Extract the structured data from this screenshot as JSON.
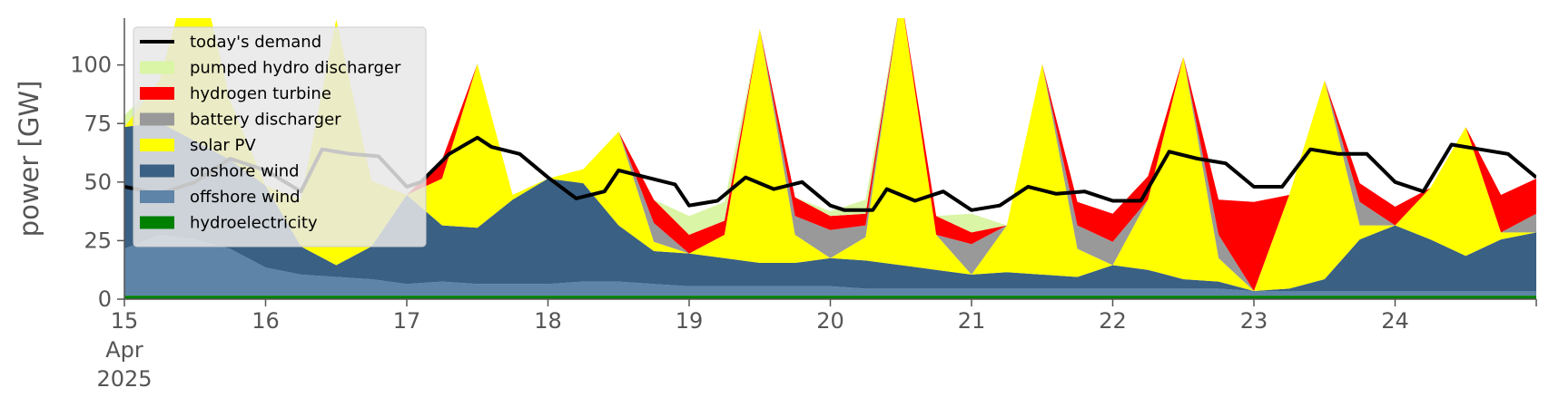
{
  "chart_data": {
    "type": "area",
    "ylabel": "power [GW]",
    "xlabel": "",
    "ylim": [
      0,
      120
    ],
    "xlim": [
      15,
      25
    ],
    "y_ticks": [
      0,
      25,
      50,
      75,
      100
    ],
    "x_ticks": [
      {
        "x": 15,
        "lines": [
          "15",
          "Apr",
          "2025"
        ]
      },
      {
        "x": 16,
        "lines": [
          "16"
        ]
      },
      {
        "x": 17,
        "lines": [
          "17"
        ]
      },
      {
        "x": 18,
        "lines": [
          "18"
        ]
      },
      {
        "x": 19,
        "lines": [
          "19"
        ]
      },
      {
        "x": 20,
        "lines": [
          "20"
        ]
      },
      {
        "x": 21,
        "lines": [
          "21"
        ]
      },
      {
        "x": 22,
        "lines": [
          "22"
        ]
      },
      {
        "x": 23,
        "lines": [
          "23"
        ]
      },
      {
        "x": 24,
        "lines": [
          "24"
        ]
      }
    ],
    "grid": false,
    "legend_position": "upper-left",
    "x": [
      15.0,
      15.25,
      15.5,
      15.75,
      16.0,
      16.25,
      16.5,
      16.75,
      17.0,
      17.25,
      17.5,
      17.75,
      18.0,
      18.25,
      18.5,
      18.75,
      19.0,
      19.25,
      19.5,
      19.75,
      20.0,
      20.25,
      20.5,
      20.75,
      21.0,
      21.25,
      21.5,
      21.75,
      22.0,
      22.25,
      22.5,
      22.75,
      23.0,
      23.25,
      23.5,
      23.75,
      24.0,
      24.25,
      24.5,
      24.75,
      25.0
    ],
    "stack_order": [
      "hydroelectricity",
      "offshore wind",
      "onshore wind",
      "solar PV",
      "battery discharger",
      "hydrogen turbine",
      "pumped hydro discharger"
    ],
    "series": [
      {
        "name": "hydroelectricity",
        "color": "#008000",
        "values": [
          1.5,
          1.5,
          1.5,
          1.5,
          1.5,
          1.5,
          1.5,
          1.5,
          1.5,
          1.5,
          1.5,
          1.5,
          1.5,
          1.5,
          1.5,
          1.5,
          1.5,
          1.5,
          1.5,
          1.5,
          1.5,
          1.5,
          1.5,
          1.5,
          1.5,
          1.5,
          1.5,
          1.5,
          1.5,
          1.5,
          1.5,
          1.5,
          1.5,
          1.5,
          1.5,
          1.5,
          1.5,
          1.5,
          1.5,
          1.5,
          1.5
        ]
      },
      {
        "name": "offshore wind",
        "color": "#5e84a8",
        "values": [
          20,
          26,
          24,
          20,
          12,
          9,
          8,
          7,
          5,
          6,
          5,
          5,
          5,
          6,
          6,
          5,
          4,
          4,
          4,
          4,
          4,
          3,
          3,
          3,
          3,
          3,
          3,
          3,
          3,
          3,
          3,
          3,
          2,
          2,
          2,
          2,
          2,
          2,
          2,
          2,
          2
        ]
      },
      {
        "name": "onshore wind",
        "color": "#3a6084",
        "values": [
          52,
          48,
          42,
          38,
          35,
          12,
          5,
          14,
          38,
          24,
          24,
          36,
          45,
          42,
          24,
          14,
          14,
          12,
          10,
          10,
          12,
          12,
          10,
          8,
          6,
          7,
          6,
          5,
          10,
          8,
          4,
          3,
          0,
          1,
          5,
          22,
          28,
          22,
          15,
          22,
          25
        ]
      },
      {
        "name": "solar PV",
        "color": "#ffff00",
        "values": [
          0,
          18,
          82,
          25,
          0,
          20,
          105,
          28,
          0,
          20,
          70,
          2,
          0,
          6,
          40,
          4,
          0,
          10,
          100,
          12,
          0,
          10,
          115,
          15,
          0,
          20,
          90,
          12,
          0,
          30,
          95,
          10,
          0,
          40,
          85,
          6,
          0,
          22,
          55,
          3,
          0
        ]
      },
      {
        "name": "battery discharger",
        "color": "#999999",
        "values": [
          0,
          0,
          0,
          0,
          0,
          0,
          0,
          0,
          0,
          0,
          0,
          0,
          0,
          0,
          0,
          8,
          0,
          0,
          0,
          8,
          12,
          5,
          0,
          0,
          13,
          0,
          0,
          10,
          10,
          0,
          0,
          10,
          0,
          0,
          0,
          10,
          0,
          0,
          0,
          0,
          8
        ]
      },
      {
        "name": "hydrogen turbine",
        "color": "#ff0000",
        "values": [
          0,
          0,
          0,
          0,
          0,
          0,
          0,
          0,
          0,
          8,
          0,
          0,
          0,
          0,
          0,
          10,
          8,
          6,
          0,
          8,
          6,
          5,
          0,
          8,
          5,
          0,
          0,
          10,
          12,
          10,
          0,
          15,
          38,
          0,
          0,
          8,
          8,
          0,
          0,
          16,
          15
        ]
      },
      {
        "name": "pumped hydro discharger",
        "color": "#d9f5a5",
        "values": [
          5,
          0,
          0,
          0,
          0,
          0,
          0,
          0,
          0,
          0,
          0,
          0,
          0,
          0,
          0,
          0,
          8,
          8,
          0,
          0,
          2,
          6,
          0,
          0,
          8,
          0,
          0,
          0,
          0,
          0,
          0,
          0,
          0,
          0,
          0,
          0,
          0,
          0,
          0,
          0,
          0
        ]
      }
    ],
    "demand": {
      "name": "today's demand",
      "color": "#000000",
      "x": [
        15.0,
        15.25,
        15.5,
        15.75,
        16.0,
        16.25,
        16.4,
        16.6,
        16.8,
        17.0,
        17.1,
        17.3,
        17.5,
        17.6,
        17.8,
        18.0,
        18.2,
        18.4,
        18.5,
        18.7,
        18.9,
        19.0,
        19.2,
        19.4,
        19.6,
        19.8,
        20.0,
        20.1,
        20.3,
        20.4,
        20.6,
        20.8,
        21.0,
        21.2,
        21.4,
        21.6,
        21.8,
        22.0,
        22.2,
        22.4,
        22.6,
        22.8,
        23.0,
        23.2,
        23.4,
        23.6,
        23.8,
        24.0,
        24.2,
        24.4,
        24.6,
        24.8,
        25.0
      ],
      "values": [
        48,
        45,
        50,
        60,
        55,
        46,
        64,
        62,
        61,
        48,
        50,
        62,
        69,
        65,
        62,
        52,
        43,
        46,
        55,
        52,
        49,
        40,
        42,
        52,
        47,
        50,
        40,
        38,
        38,
        47,
        42,
        46,
        38,
        40,
        48,
        45,
        46,
        42,
        42,
        63,
        60,
        58,
        48,
        48,
        64,
        62,
        62,
        50,
        46,
        66,
        64,
        62,
        52
      ]
    },
    "legend": [
      {
        "label": "today's demand",
        "color": "#000000",
        "kind": "line"
      },
      {
        "label": "pumped hydro discharger",
        "color": "#d9f5a5",
        "kind": "patch"
      },
      {
        "label": "hydrogen turbine",
        "color": "#ff0000",
        "kind": "patch"
      },
      {
        "label": "battery discharger",
        "color": "#999999",
        "kind": "patch"
      },
      {
        "label": "solar PV",
        "color": "#ffff00",
        "kind": "patch"
      },
      {
        "label": "onshore wind",
        "color": "#3a6084",
        "kind": "patch"
      },
      {
        "label": "offshore wind",
        "color": "#5e84a8",
        "kind": "patch"
      },
      {
        "label": "hydroelectricity",
        "color": "#008000",
        "kind": "patch"
      }
    ]
  }
}
